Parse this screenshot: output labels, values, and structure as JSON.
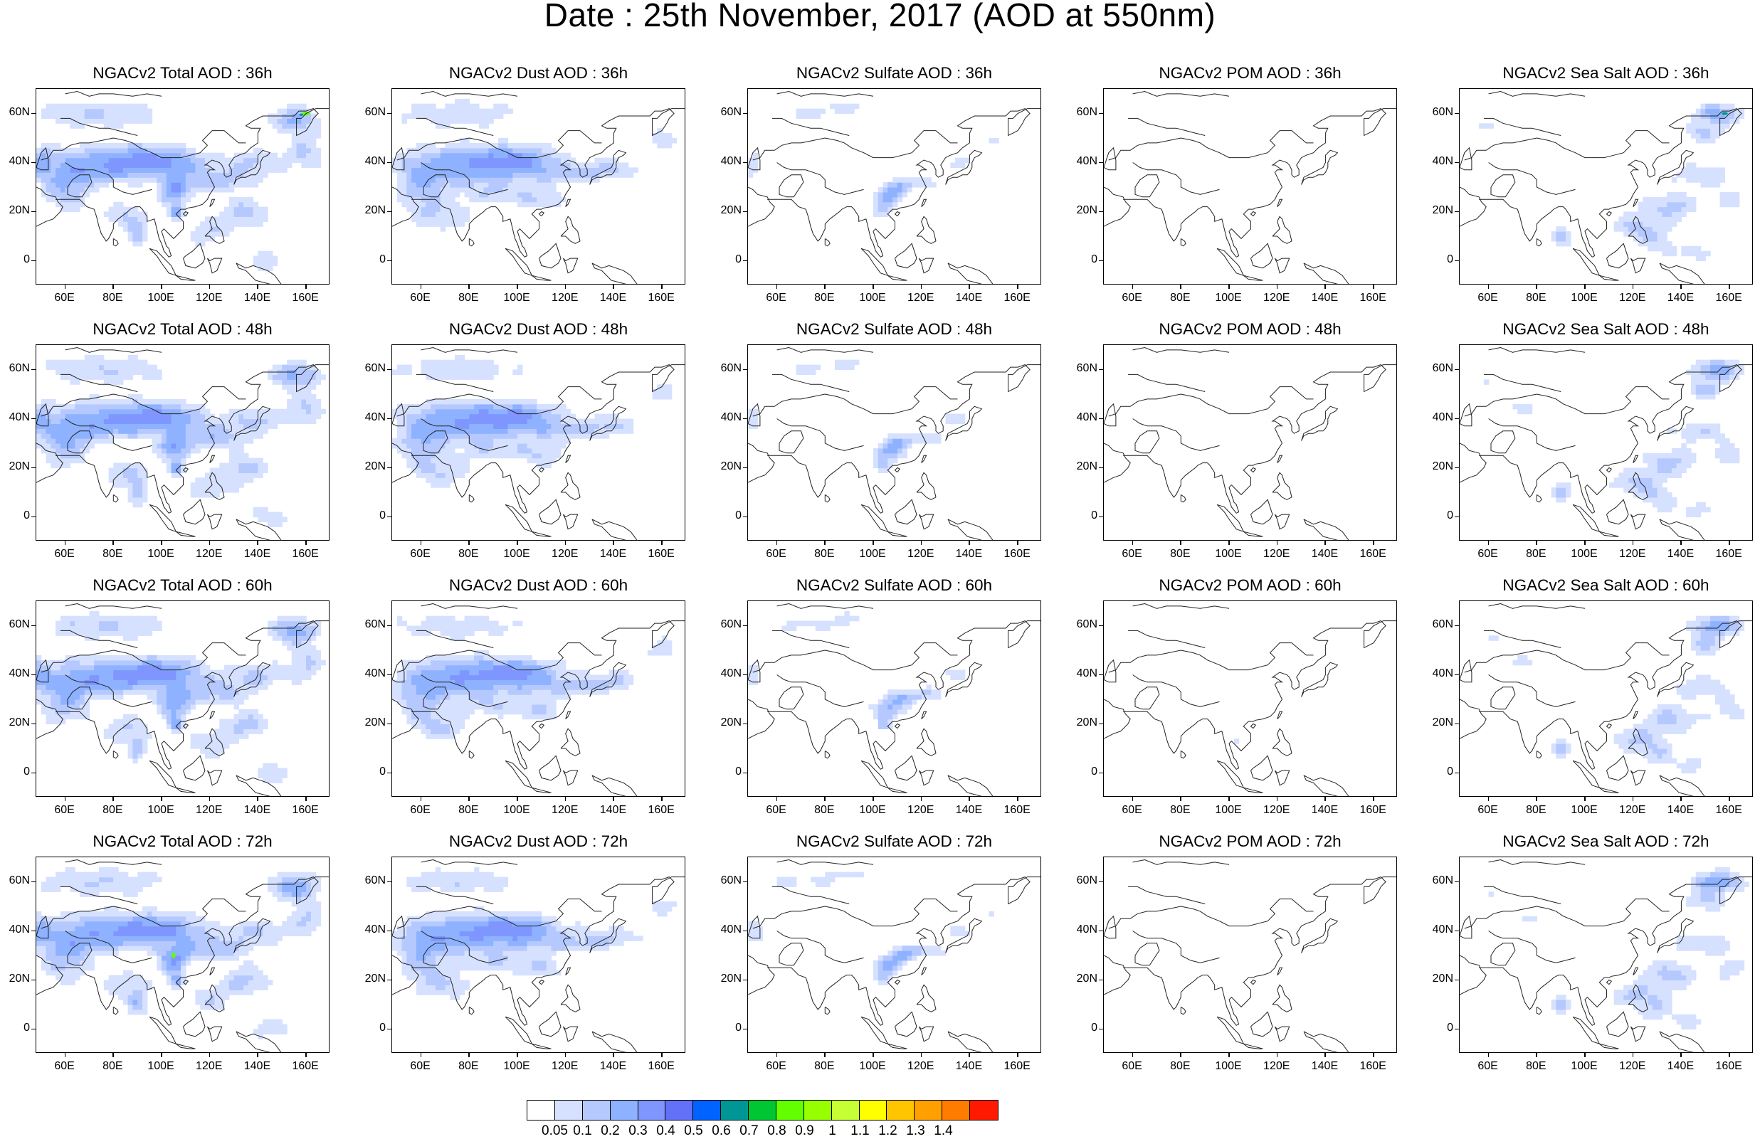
{
  "title": "Date : 25th November, 2017 (AOD at 550nm)",
  "axes": {
    "x_ticks": [
      "60E",
      "80E",
      "100E",
      "120E",
      "140E",
      "160E"
    ],
    "x_tick_values": [
      60,
      80,
      100,
      120,
      140,
      160
    ],
    "y_ticks": [
      "60N",
      "40N",
      "20N",
      "0"
    ],
    "y_tick_values": [
      60,
      40,
      20,
      0
    ],
    "lon_range": [
      48,
      170
    ],
    "lat_range": [
      -10,
      70
    ]
  },
  "colorbar": {
    "colors": [
      "#ffffff",
      "#d6e1ff",
      "#b5c9ff",
      "#8eb2ff",
      "#7f96ff",
      "#6370f8",
      "#0063ff",
      "#009696",
      "#00c633",
      "#63ff00",
      "#96ff00",
      "#c6ff33",
      "#ffff00",
      "#ffc600",
      "#ffa000",
      "#ff7c00",
      "#ff1900"
    ],
    "labels": [
      "0.05",
      "0.1",
      "0.2",
      "0.3",
      "0.4",
      "0.5",
      "0.6",
      "0.7",
      "0.8",
      "0.9",
      "1",
      "1.1",
      "1.2",
      "1.3",
      "1.4"
    ]
  },
  "panels": [
    {
      "title": "NGACv2 Total AOD : 36h",
      "species": "total",
      "hour": 36
    },
    {
      "title": "NGACv2 Dust AOD : 36h",
      "species": "dust",
      "hour": 36
    },
    {
      "title": "NGACv2 Sulfate AOD : 36h",
      "species": "sulfate",
      "hour": 36
    },
    {
      "title": "NGACv2 POM AOD : 36h",
      "species": "pom",
      "hour": 36
    },
    {
      "title": "NGACv2 Sea Salt AOD : 36h",
      "species": "seasalt",
      "hour": 36
    },
    {
      "title": "NGACv2 Total AOD : 48h",
      "species": "total",
      "hour": 48
    },
    {
      "title": "NGACv2 Dust AOD : 48h",
      "species": "dust",
      "hour": 48
    },
    {
      "title": "NGACv2 Sulfate AOD : 48h",
      "species": "sulfate",
      "hour": 48
    },
    {
      "title": "NGACv2 POM AOD : 48h",
      "species": "pom",
      "hour": 48
    },
    {
      "title": "NGACv2 Sea Salt AOD : 48h",
      "species": "seasalt",
      "hour": 48
    },
    {
      "title": "NGACv2 Total AOD : 60h",
      "species": "total",
      "hour": 60
    },
    {
      "title": "NGACv2 Dust AOD : 60h",
      "species": "dust",
      "hour": 60
    },
    {
      "title": "NGACv2 Sulfate AOD : 60h",
      "species": "sulfate",
      "hour": 60
    },
    {
      "title": "NGACv2 POM AOD : 60h",
      "species": "pom",
      "hour": 60
    },
    {
      "title": "NGACv2 Sea Salt AOD : 60h",
      "species": "seasalt",
      "hour": 60
    },
    {
      "title": "NGACv2 Total AOD : 72h",
      "species": "total",
      "hour": 72
    },
    {
      "title": "NGACv2 Dust AOD : 72h",
      "species": "dust",
      "hour": 72
    },
    {
      "title": "NGACv2 Sulfate AOD : 72h",
      "species": "sulfate",
      "hour": 72
    },
    {
      "title": "NGACv2 POM AOD : 72h",
      "species": "pom",
      "hour": 72
    },
    {
      "title": "NGACv2 Sea Salt  AOD : 72h",
      "species": "seasalt",
      "hour": 72
    }
  ]
}
